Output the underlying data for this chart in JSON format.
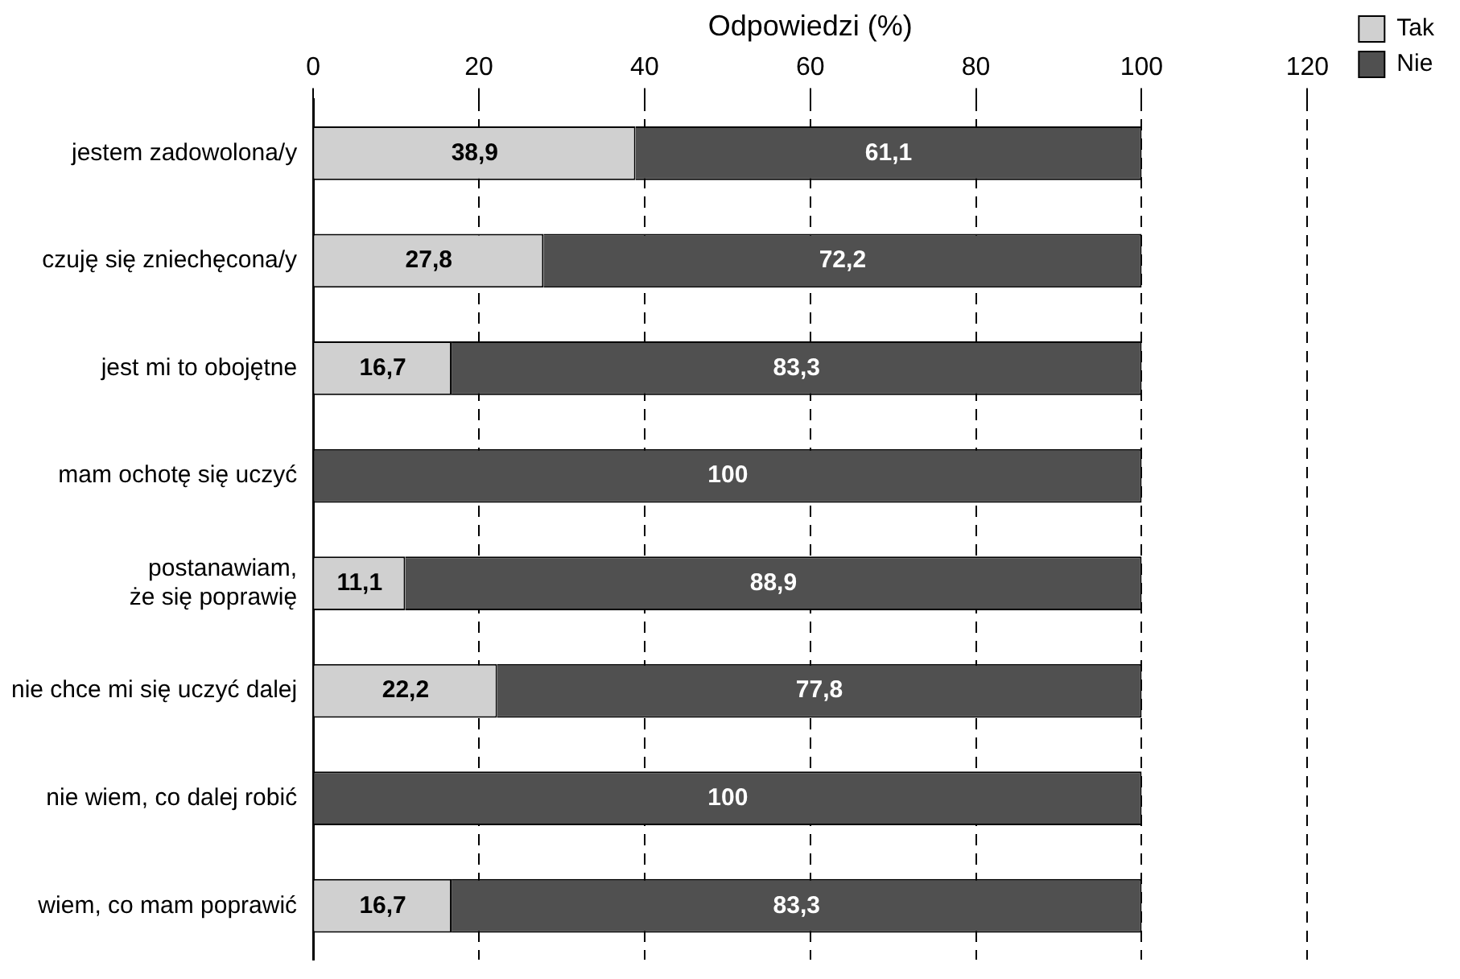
{
  "chart_data": {
    "type": "bar",
    "orientation": "horizontal",
    "stacked": true,
    "xlabel": "Odpowiedzi (%)",
    "categories": [
      "jestem zadowolona/y",
      "czuję się zniechęcona/y",
      "jest mi to obojętne",
      "mam ochotę się uczyć",
      "postanawiam,\nże się poprawię",
      "nie chce mi się uczyć dalej",
      "nie wiem, co dalej robić",
      "wiem, co mam poprawić"
    ],
    "series": [
      {
        "name": "Tak",
        "color": "#d0d0d0",
        "values": [
          38.9,
          27.8,
          16.7,
          0,
          11.1,
          22.2,
          0,
          16.7
        ],
        "value_labels": [
          "38,9",
          "27,8",
          "16,7",
          null,
          "11,1",
          "22,2",
          null,
          "16,7"
        ]
      },
      {
        "name": "Nie",
        "color": "#505050",
        "values": [
          61.1,
          72.2,
          83.3,
          100,
          88.9,
          77.8,
          100,
          83.3
        ],
        "value_labels": [
          "61,1",
          "72,2",
          "83,3",
          "100",
          "88,9",
          "77,8",
          "100",
          "83,3"
        ]
      }
    ],
    "xlim": [
      0,
      120
    ],
    "xticks": [
      0,
      20,
      40,
      60,
      80,
      100,
      120
    ],
    "grid": "x",
    "legend": "top right"
  }
}
